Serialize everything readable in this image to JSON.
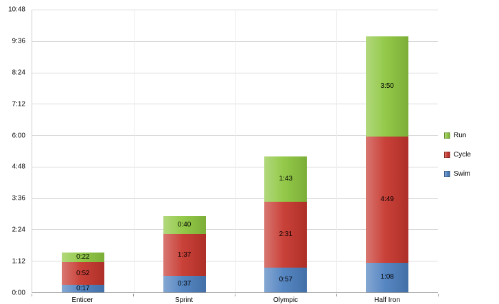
{
  "chart_data": {
    "type": "bar",
    "stacked": true,
    "title": "",
    "categories": [
      "Enticer",
      "Sprint",
      "Olympic",
      "Half Iron"
    ],
    "series": [
      {
        "name": "Swim",
        "color": "#4c7fbe",
        "segment_labels": [
          "0:17",
          "0:37",
          "0:57",
          "1:08"
        ],
        "values_minutes": [
          17,
          37,
          57,
          68
        ]
      },
      {
        "name": "Cycle",
        "color": "#c6362d",
        "segment_labels": [
          "0:52",
          "1:37",
          "2:31",
          "4:49"
        ],
        "values_minutes": [
          52,
          97,
          151,
          289
        ]
      },
      {
        "name": "Run",
        "color": "#8dc63f",
        "segment_labels": [
          "0:22",
          "0:40",
          "1:43",
          "3:50"
        ],
        "values_minutes": [
          22,
          40,
          103,
          230
        ]
      }
    ],
    "y_axis": {
      "tick_labels": [
        "0:00",
        "1:12",
        "2:24",
        "3:36",
        "4:48",
        "6:00",
        "7:12",
        "8:24",
        "9:36",
        "10:48"
      ],
      "min_minutes": 0,
      "max_minutes": 648,
      "tick_interval_minutes": 72
    },
    "x_axis": {
      "labels": [
        "Enticer",
        "Sprint",
        "Olympic",
        "Half Iron"
      ]
    },
    "legend": {
      "position": "right",
      "entries": [
        "Run",
        "Cycle",
        "Swim"
      ]
    },
    "grid": true,
    "colors": {
      "gridline": "#d9d9d9",
      "axis": "#9b9b9b",
      "background": "#ffffff"
    }
  }
}
